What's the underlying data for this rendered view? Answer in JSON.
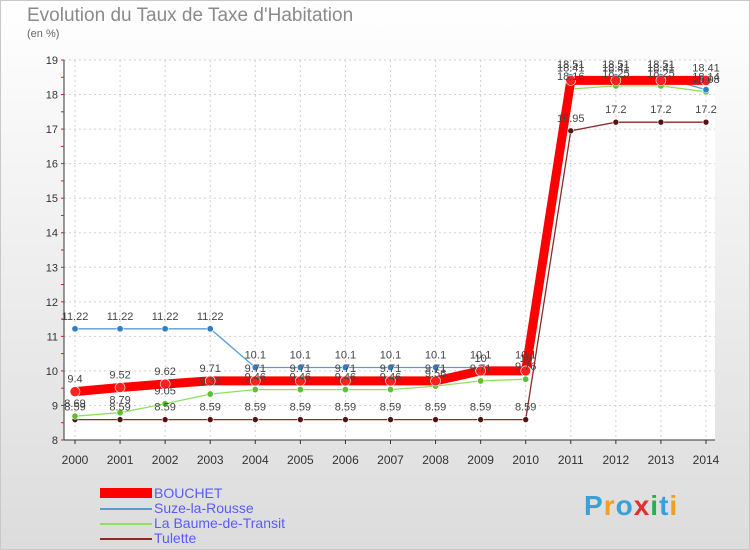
{
  "header": {
    "title": "Evolution du Taux de Taxe d'Habitation",
    "subtitle": "(en %)"
  },
  "brand": {
    "logo": "Proxiti",
    "logo_colors": [
      "#3aa0d8",
      "#f0a020",
      "#3aa0d8",
      "#e03030",
      "#2ab04a",
      "#3aa0d8",
      "#f0a020"
    ]
  },
  "chart_data": {
    "type": "line",
    "title": "Evolution du Taux de Taxe d'Habitation",
    "ylabel": "(en %)",
    "xlabel": "",
    "x": [
      "2000",
      "2001",
      "2002",
      "2003",
      "2004",
      "2005",
      "2006",
      "2007",
      "2008",
      "2009",
      "2010",
      "2011",
      "2012",
      "2013",
      "2014"
    ],
    "ylim": [
      8,
      19
    ],
    "yticks": [
      "8",
      "9",
      "10",
      "11",
      "12",
      "13",
      "14",
      "15",
      "16",
      "17",
      "18",
      "19"
    ],
    "grid": true,
    "legend_position": "bottom-left",
    "series": [
      {
        "name": "BOUCHET",
        "color": "#ff0000",
        "marker_color": "#ff2020",
        "values": [
          9.4,
          9.52,
          9.62,
          9.71,
          9.71,
          9.71,
          9.71,
          9.71,
          9.71,
          10.0,
          10.0,
          18.41,
          18.41,
          18.41,
          18.41
        ],
        "labels": [
          "9.4",
          "9.52",
          "9.62",
          "9.71",
          "9.71",
          "9.71",
          "9.71",
          "9.71",
          "9.71",
          "10",
          "10",
          "18.41",
          "18.41",
          "18.41",
          "18.41"
        ]
      },
      {
        "name": "Suze-la-Rousse",
        "color": "#5b9bd5",
        "marker_color": "#2f7ecb",
        "values": [
          11.22,
          11.22,
          11.22,
          11.22,
          10.1,
          10.1,
          10.1,
          10.1,
          10.1,
          10.1,
          10.1,
          18.51,
          18.51,
          18.51,
          18.14
        ],
        "labels": [
          "11.22",
          "11.22",
          "11.22",
          "11.22",
          "10.1",
          "10.1",
          "10.1",
          "10.1",
          "10.1",
          "10.1",
          "10.1",
          "18.51",
          "18.51",
          "18.51",
          "18.14"
        ]
      },
      {
        "name": "La Baume-de-Transit",
        "color": "#90e060",
        "marker_color": "#60c030",
        "values": [
          8.69,
          8.79,
          9.05,
          9.33,
          9.46,
          9.46,
          9.46,
          9.46,
          9.56,
          9.71,
          9.76,
          18.16,
          18.25,
          18.25,
          18.08
        ],
        "labels": [
          "8.69",
          "8.79",
          "9.05",
          "9.33",
          "9.46",
          "9.46",
          "9.46",
          "9.46",
          "9.56",
          "9.71",
          "9.76",
          "18.16",
          "18.25",
          "18.25",
          "18.08"
        ]
      },
      {
        "name": "Tulette",
        "color": "#8b2a2a",
        "marker_color": "#5a1010",
        "values": [
          8.59,
          8.59,
          8.59,
          8.59,
          8.59,
          8.59,
          8.59,
          8.59,
          8.59,
          8.59,
          8.59,
          16.95,
          17.2,
          17.2,
          17.2
        ],
        "labels": [
          "8.59",
          "8.59",
          "8.59",
          "8.59",
          "8.59",
          "8.59",
          "8.59",
          "8.59",
          "8.59",
          "8.59",
          "8.59",
          "16.95",
          "17.2",
          "17.2",
          "17.2"
        ]
      }
    ]
  }
}
